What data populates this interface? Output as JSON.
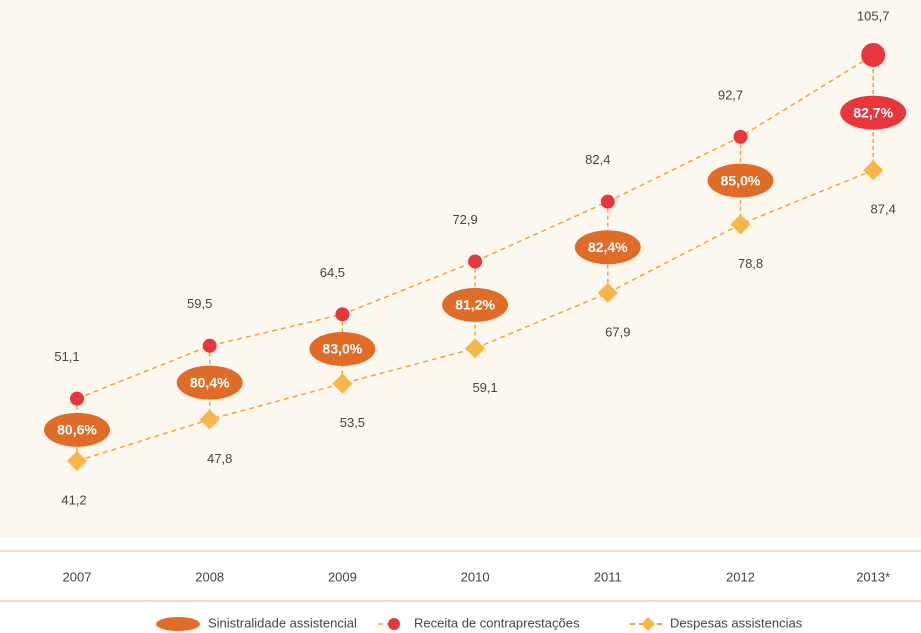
{
  "chart_data": {
    "type": "line",
    "categories": [
      "2007",
      "2008",
      "2009",
      "2010",
      "2011",
      "2012",
      "2013*"
    ],
    "series": [
      {
        "name": "Receita de contraprestações",
        "color": "#e8373c",
        "marker": "circle",
        "values": [
          51.1,
          59.5,
          64.5,
          72.9,
          82.4,
          92.7,
          105.7
        ],
        "value_labels": [
          "51,1",
          "59,5",
          "64,5",
          "72,9",
          "82,4",
          "92,7",
          "105,7"
        ]
      },
      {
        "name": "Despesas assistencias",
        "color": "#f8b54a",
        "marker": "diamond",
        "values": [
          41.2,
          47.8,
          53.5,
          59.1,
          67.9,
          78.8,
          87.4
        ],
        "value_labels": [
          "41,2",
          "47,8",
          "53,5",
          "59,1",
          "67,9",
          "78,8",
          "87,4"
        ]
      }
    ],
    "ratio_series": {
      "name": "Sinistralidade assistencial",
      "color": "#e06d27",
      "colors": [
        "#e06d27",
        "#e06d27",
        "#e06d27",
        "#e06d27",
        "#e06d27",
        "#e06d27",
        "#e8373c"
      ],
      "values": [
        80.6,
        80.4,
        83.0,
        81.2,
        82.4,
        85.0,
        82.7
      ],
      "value_labels": [
        "80,6%",
        "80,4%",
        "83,0%",
        "81,2%",
        "82,4%",
        "85,0%",
        "82,7%"
      ]
    },
    "line_color": "#f3a23f"
  }
}
